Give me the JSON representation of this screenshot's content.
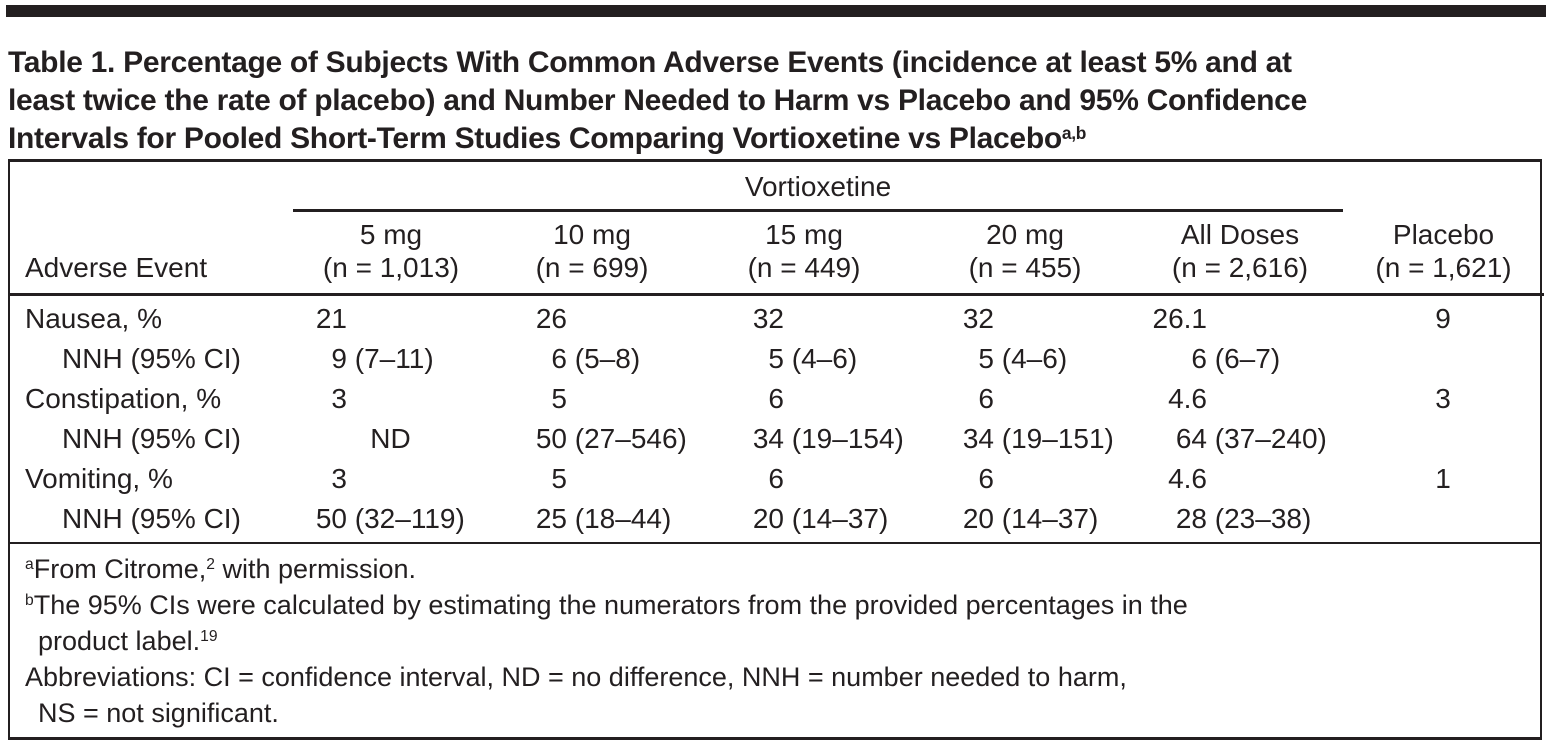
{
  "title": {
    "lines": [
      "Table 1. Percentage of Subjects With Common Adverse Events (incidence at least 5% and at",
      "least twice the rate of placebo) and Number Needed to Harm vs Placebo and 95% Confidence",
      "Intervals for Pooled Short-Term Studies Comparing Vortioxetine vs Placebo"
    ],
    "superscript": "a,b"
  },
  "table": {
    "group_header": "Vortioxetine",
    "row_header": "Adverse Event",
    "columns": [
      {
        "dose": "5 mg",
        "n": "(n = 1,013)"
      },
      {
        "dose": "10 mg",
        "n": "(n = 699)"
      },
      {
        "dose": "15 mg",
        "n": "(n = 449)"
      },
      {
        "dose": "20 mg",
        "n": "(n = 455)"
      },
      {
        "dose": "All Doses",
        "n": "(n = 2,616)"
      }
    ],
    "placebo_column": {
      "dose": "Placebo",
      "n": "(n = 1,621)"
    },
    "rows": [
      {
        "label": "Nausea, %",
        "cells": [
          {
            "num": "21",
            "ci": ""
          },
          {
            "num": "26",
            "ci": ""
          },
          {
            "num": "32",
            "ci": ""
          },
          {
            "num": "32",
            "ci": ""
          },
          {
            "num": "26.1",
            "ci": ""
          }
        ],
        "placebo": "9"
      },
      {
        "label": "NNH (95% CI)",
        "cells": [
          {
            "num": "9",
            "ci": " (7–11)"
          },
          {
            "num": "6",
            "ci": " (5–8)"
          },
          {
            "num": "5",
            "ci": " (4–6)"
          },
          {
            "num": "5",
            "ci": " (4–6)"
          },
          {
            "num": "6",
            "ci": " (6–7)"
          }
        ],
        "placebo": ""
      },
      {
        "label": "Constipation, %",
        "cells": [
          {
            "num": "3",
            "ci": ""
          },
          {
            "num": "5",
            "ci": ""
          },
          {
            "num": "6",
            "ci": ""
          },
          {
            "num": "6",
            "ci": ""
          },
          {
            "num": "4.6",
            "ci": ""
          }
        ],
        "placebo": "3"
      },
      {
        "label": "NNH (95% CI)",
        "cells": [
          {
            "num": "ND",
            "ci": ""
          },
          {
            "num": "50",
            "ci": " (27–546)"
          },
          {
            "num": "34",
            "ci": " (19–154)"
          },
          {
            "num": "34",
            "ci": " (19–151)"
          },
          {
            "num": "64",
            "ci": " (37–240)"
          }
        ],
        "placebo": ""
      },
      {
        "label": "Vomiting, %",
        "cells": [
          {
            "num": "3",
            "ci": ""
          },
          {
            "num": "5",
            "ci": ""
          },
          {
            "num": "6",
            "ci": ""
          },
          {
            "num": "6",
            "ci": ""
          },
          {
            "num": "4.6",
            "ci": ""
          }
        ],
        "placebo": "1"
      },
      {
        "label": "NNH (95% CI)",
        "cells": [
          {
            "num": "50",
            "ci": " (32–119)"
          },
          {
            "num": "25",
            "ci": " (18–44)"
          },
          {
            "num": "20",
            "ci": " (14–37)"
          },
          {
            "num": "20",
            "ci": " (14–37)"
          },
          {
            "num": "28",
            "ci": " (23–38)"
          }
        ],
        "placebo": ""
      }
    ]
  },
  "footnotes": {
    "a": {
      "marker": "a",
      "pre": "From Citrome,",
      "ref": "2",
      "post": " with permission."
    },
    "b": {
      "marker": "b",
      "line1": "The 95% CIs were calculated by estimating the numerators from the provided percentages in the",
      "line2": "product label.",
      "ref": "19"
    },
    "abbrev": {
      "line1": "Abbreviations: CI = confidence interval, ND = no difference, NNH = number needed to harm,",
      "line2": "NS = not significant."
    }
  },
  "colors": {
    "text": "#231f20",
    "rule": "#231f20",
    "background": "#ffffff"
  }
}
